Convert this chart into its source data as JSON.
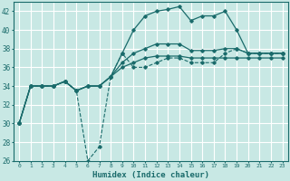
{
  "xlabel": "Humidex (Indice chaleur)",
  "background_color": "#c8e8e4",
  "grid_color": "#ffffff",
  "line_color": "#1a6b6b",
  "xlim": [
    -0.5,
    23.5
  ],
  "ylim": [
    26,
    43
  ],
  "xticks": [
    0,
    1,
    2,
    3,
    4,
    5,
    6,
    7,
    8,
    9,
    10,
    11,
    12,
    13,
    14,
    15,
    16,
    17,
    18,
    19,
    20,
    21,
    22,
    23
  ],
  "yticks": [
    26,
    28,
    30,
    32,
    34,
    36,
    38,
    40,
    42
  ],
  "series_dashed_x": [
    0,
    1,
    2,
    3,
    4,
    5,
    6,
    7,
    8,
    9,
    10,
    11,
    12,
    13,
    14,
    15,
    16,
    17,
    18,
    19,
    20,
    21,
    22,
    23
  ],
  "series_dashed_y": [
    30,
    34,
    34,
    34,
    34.5,
    33.5,
    26,
    27.5,
    35,
    37.5,
    36,
    36,
    36.5,
    37,
    37,
    36.5,
    36.5,
    36.5,
    37.5,
    38,
    37.5,
    37.5,
    37.5,
    37.5
  ],
  "series_high_x": [
    0,
    1,
    2,
    3,
    4,
    5,
    6,
    7,
    8,
    9,
    10,
    11,
    12,
    13,
    14,
    15,
    16,
    17,
    18,
    19,
    20,
    21,
    22,
    23
  ],
  "series_high_y": [
    30,
    34,
    34,
    34,
    34.5,
    33.5,
    34,
    34,
    35,
    37.5,
    40,
    41.5,
    42,
    42.2,
    42.5,
    41,
    41.5,
    41.5,
    42,
    40,
    37.5,
    37.5,
    37.5,
    37.5
  ],
  "series_mid_x": [
    0,
    1,
    2,
    3,
    4,
    5,
    6,
    7,
    8,
    9,
    10,
    11,
    12,
    13,
    14,
    15,
    16,
    17,
    18,
    19,
    20,
    21,
    22,
    23
  ],
  "series_mid_y": [
    30,
    34,
    34,
    34,
    34.5,
    33.5,
    34,
    34,
    35,
    36.5,
    37.5,
    38,
    38.5,
    38.5,
    38.5,
    37.8,
    37.8,
    37.8,
    38,
    38,
    37.5,
    37.5,
    37.5,
    37.5
  ],
  "series_low_x": [
    0,
    1,
    2,
    3,
    4,
    5,
    6,
    7,
    8,
    9,
    10,
    11,
    12,
    13,
    14,
    15,
    16,
    17,
    18,
    19,
    20,
    21,
    22,
    23
  ],
  "series_low_y": [
    30,
    34,
    34,
    34,
    34.5,
    33.5,
    34,
    34,
    35,
    36,
    36.5,
    37,
    37.2,
    37.2,
    37.2,
    37,
    37,
    37,
    37,
    37,
    37,
    37,
    37,
    37
  ]
}
